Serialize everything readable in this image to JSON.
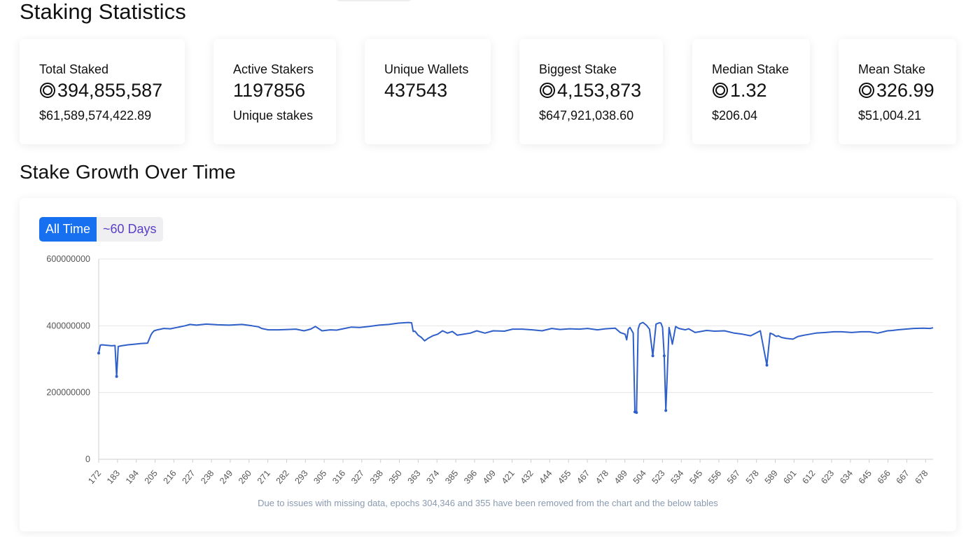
{
  "header": {
    "title": "Staking Statistics"
  },
  "stats": [
    {
      "label": "Total Staked",
      "value": "394,855,587",
      "coin": true,
      "sub": "$61,589,574,422.89"
    },
    {
      "label": "Active Stakers",
      "value": "1197856",
      "coin": false,
      "sub": "Unique stakes"
    },
    {
      "label": "Unique Wallets",
      "value": "437543",
      "coin": false,
      "sub": ""
    },
    {
      "label": "Biggest Stake",
      "value": "4,153,873",
      "coin": true,
      "sub": "$647,921,038.60"
    },
    {
      "label": "Median Stake",
      "value": "1.32",
      "coin": true,
      "sub": "$206.04"
    },
    {
      "label": "Mean Stake",
      "value": "326.99",
      "coin": true,
      "sub": "$51,004.21"
    }
  ],
  "growth": {
    "title": "Stake Growth Over Time",
    "buttons": {
      "all_time": "All Time",
      "sixty_days": "~60 Days"
    },
    "footnote": "Due to issues with missing data, epochs 304,346 and 355 have been removed from the chart and the below tables"
  },
  "colors": {
    "line": "#2f5fc9",
    "button_active": "#1670f0",
    "button_inactive_text": "#5a3fc4",
    "footnote": "#8a9ab0"
  },
  "chart_data": {
    "type": "line",
    "xlabel": "",
    "ylabel": "",
    "ylim": [
      0,
      600000000
    ],
    "yticks": [
      "0",
      "200000000",
      "400000000",
      "600000000"
    ],
    "ytick_values": [
      0,
      200000000,
      400000000,
      600000000
    ],
    "xticks": [
      "172",
      "183",
      "194",
      "205",
      "216",
      "227",
      "238",
      "249",
      "260",
      "271",
      "282",
      "293",
      "305",
      "316",
      "327",
      "338",
      "350",
      "363",
      "374",
      "385",
      "396",
      "409",
      "421",
      "432",
      "444",
      "455",
      "467",
      "478",
      "489",
      "504",
      "523",
      "534",
      "545",
      "556",
      "567",
      "578",
      "589",
      "601",
      "612",
      "623",
      "634",
      "645",
      "656",
      "667",
      "678"
    ],
    "grid": "horizontal",
    "legend": "none",
    "series": [
      {
        "x": [
          172,
          173,
          174,
          180,
          182,
          183,
          184,
          186,
          190,
          194,
          198,
          202,
          204,
          205,
          206,
          208,
          212,
          216,
          220,
          225,
          228,
          232,
          238,
          245,
          252,
          260,
          266,
          270,
          272,
          276,
          282,
          288,
          293,
          298,
          302,
          305,
          309,
          314,
          318,
          323,
          327,
          332,
          338,
          344,
          350,
          356,
          362,
          364,
          365,
          366,
          368,
          370,
          372,
          374,
          377,
          380,
          383,
          386,
          389,
          392,
          396,
          400,
          404,
          409,
          414,
          421,
          426,
          432,
          438,
          444,
          450,
          455,
          461,
          467,
          472,
          478,
          483,
          489,
          492,
          495,
          496,
          497,
          498,
          500,
          501,
          502,
          503,
          504,
          505,
          506,
          507,
          508,
          510,
          512,
          514,
          516,
          517,
          518,
          519,
          520,
          522,
          524,
          526,
          528,
          530,
          532,
          534,
          538,
          545,
          550,
          556,
          562,
          567,
          572,
          578,
          582,
          584,
          586,
          587,
          588,
          589,
          591,
          594,
          598,
          601,
          605,
          612,
          618,
          623,
          628,
          634,
          640,
          645,
          650,
          656,
          659,
          662,
          667,
          672,
          678,
          682,
          684
        ],
        "values": [
          318000000,
          342000000,
          343000000,
          340000000,
          341000000,
          248000000,
          338000000,
          340000000,
          343000000,
          345000000,
          347000000,
          348000000,
          372000000,
          380000000,
          385000000,
          388000000,
          392000000,
          391000000,
          395000000,
          400000000,
          404000000,
          402000000,
          405000000,
          403000000,
          402000000,
          404000000,
          400000000,
          397000000,
          392000000,
          388000000,
          388000000,
          389000000,
          390000000,
          385000000,
          390000000,
          398000000,
          385000000,
          388000000,
          387000000,
          392000000,
          396000000,
          395000000,
          398000000,
          402000000,
          404000000,
          408000000,
          410000000,
          409000000,
          383000000,
          384000000,
          372000000,
          365000000,
          355000000,
          362000000,
          370000000,
          375000000,
          385000000,
          378000000,
          383000000,
          372000000,
          375000000,
          378000000,
          385000000,
          378000000,
          385000000,
          384000000,
          390000000,
          390000000,
          388000000,
          385000000,
          392000000,
          389000000,
          391000000,
          390000000,
          392000000,
          388000000,
          391000000,
          393000000,
          380000000,
          375000000,
          358000000,
          390000000,
          395000000,
          378000000,
          142000000,
          140000000,
          390000000,
          405000000,
          408000000,
          410000000,
          406000000,
          402000000,
          390000000,
          310000000,
          405000000,
          409000000,
          408000000,
          395000000,
          310000000,
          146000000,
          395000000,
          345000000,
          398000000,
          392000000,
          390000000,
          388000000,
          391000000,
          380000000,
          386000000,
          384000000,
          385000000,
          378000000,
          375000000,
          370000000,
          385000000,
          282000000,
          378000000,
          374000000,
          370000000,
          368000000,
          370000000,
          365000000,
          362000000,
          360000000,
          368000000,
          372000000,
          378000000,
          380000000,
          382000000,
          382000000,
          380000000,
          382000000,
          382000000,
          378000000,
          385000000,
          386000000,
          388000000,
          390000000,
          392000000,
          393000000,
          392000000,
          394000000
        ]
      }
    ]
  }
}
